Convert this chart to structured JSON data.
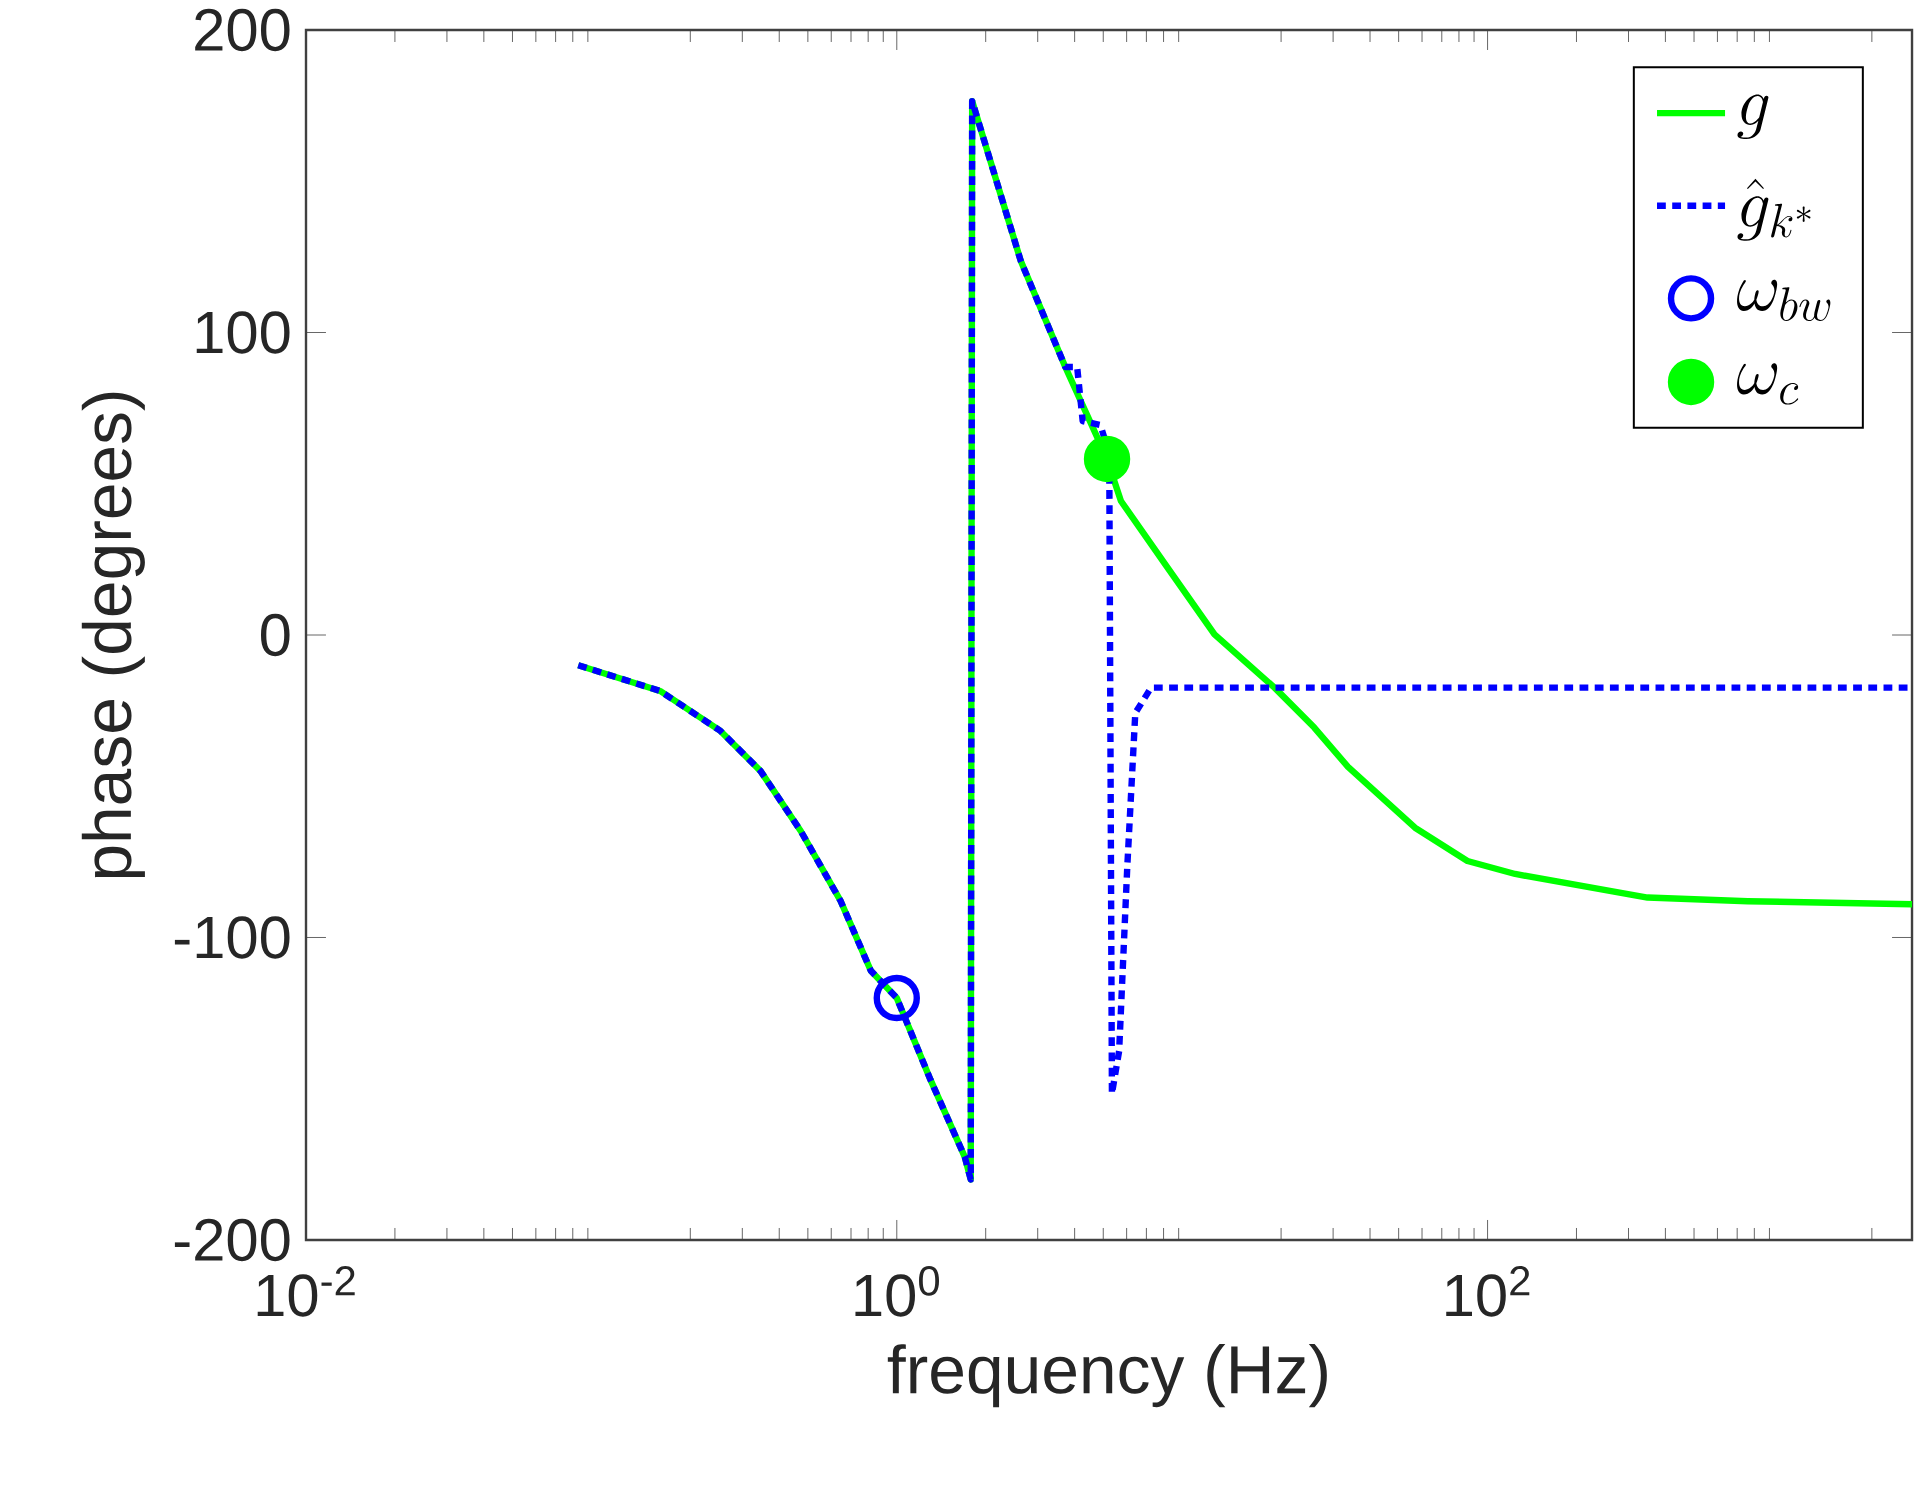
{
  "chart_data": {
    "type": "line",
    "xlabel": "frequency (Hz)",
    "ylabel": "phase (degrees)",
    "log": "x",
    "legend": "top right",
    "xlim": [
      0.01,
      2735
    ],
    "ylim": [
      -200,
      200
    ],
    "xticks": [
      {
        "value": 0.01,
        "label": "10$^{-2}$"
      },
      {
        "value": 1,
        "label": "10$^{0}$"
      },
      {
        "value": 100,
        "label": "10$^{2}$"
      }
    ],
    "yticks": [
      -200,
      -100,
      0,
      100,
      200
    ],
    "series": [
      {
        "name": "g",
        "color": "#00ff00",
        "line_style": "solid",
        "x": [
          0.0835,
          0.158,
          0.253,
          0.346,
          0.473,
          0.646,
          0.817,
          1.0,
          1.3,
          1.7,
          1.78,
          1.8,
          2.63,
          3.72,
          5.15,
          5.74,
          8.22,
          11.9,
          19.0,
          25.9,
          33.7,
          56.8,
          85.5,
          124,
          348,
          760,
          2735
        ],
        "values": [
          -10,
          -18.5,
          -31.7,
          -45,
          -64.8,
          -88,
          -111,
          -120,
          -147,
          -172.6,
          -180,
          176.5,
          123.6,
          88.6,
          58.2,
          44.3,
          22.5,
          0.2,
          -17.4,
          -30.6,
          -43.6,
          -63.7,
          -74.7,
          -79,
          -86.8,
          -88,
          -89
        ]
      },
      {
        "name": "\\hat{g}_{k^*}",
        "color": "#0000ff",
        "line_style": "dotted",
        "x": [
          0.0835,
          0.158,
          0.253,
          0.346,
          0.473,
          0.646,
          0.817,
          1.0,
          1.3,
          1.7,
          1.78,
          1.8,
          2.63,
          3.72,
          4.08,
          4.26,
          4.89,
          5.24,
          5.35,
          5.66,
          6.03,
          6.42,
          7.26,
          2735
        ],
        "values": [
          -10,
          -18.5,
          -31.7,
          -45,
          -64.8,
          -88,
          -111,
          -120,
          -147,
          -172.6,
          -180,
          176.5,
          123.6,
          88.6,
          88.6,
          70.7,
          69.4,
          60,
          -151.7,
          -137.5,
          -76.7,
          -25.8,
          -17.4,
          -17.4
        ]
      },
      {
        "name": "\\omega_{bw}",
        "type": "scatter",
        "color": "#0000ff",
        "marker": "circle-open",
        "x": [
          1.0
        ],
        "values": [
          -120
        ]
      },
      {
        "name": "\\omega_c",
        "type": "scatter",
        "color": "#00ff00",
        "marker": "circle",
        "x": [
          5.15
        ],
        "values": [
          58.2
        ]
      }
    ]
  }
}
